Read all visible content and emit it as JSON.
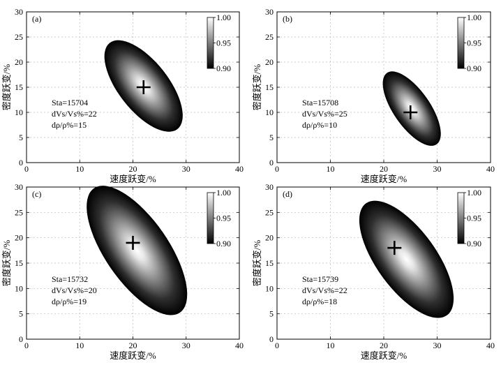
{
  "chart_data": [
    {
      "panel": "(a)",
      "type": "heatmap",
      "xlabel": "速度跃变/%",
      "ylabel": "密度跃变/%",
      "xlim": [
        0,
        40
      ],
      "ylim": [
        0,
        30
      ],
      "xticks": [
        "0",
        "10",
        "20",
        "30",
        "40"
      ],
      "yticks": [
        "0",
        "5",
        "10",
        "15",
        "20",
        "25",
        "30"
      ],
      "grid": true,
      "colorbar": {
        "min": 0.9,
        "max": 1.0,
        "tick_labels": [
          "1.00",
          "0.95",
          "0.90"
        ]
      },
      "best_fit": {
        "x": 22,
        "y": 15
      },
      "region": {
        "center": [
          22,
          15
        ],
        "x_range": [
          15.5,
          28.5
        ],
        "y_range": [
          6.5,
          24
        ]
      },
      "annotation": {
        "sta": "Sta=15704",
        "dv": "dVs/Vs%=22",
        "dp": "dρ/ρ%=15"
      }
    },
    {
      "panel": "(b)",
      "type": "heatmap",
      "xlabel": "速度跃变/%",
      "ylabel": "密度跃变/%",
      "xlim": [
        0,
        40
      ],
      "ylim": [
        0,
        30
      ],
      "xticks": [
        "0",
        "10",
        "20",
        "30",
        "40"
      ],
      "yticks": [
        "0",
        "5",
        "10",
        "15",
        "20",
        "25",
        "30"
      ],
      "grid": true,
      "colorbar": {
        "min": 0.9,
        "max": 1.0,
        "tick_labels": [
          "1.00",
          "0.95",
          "0.90"
        ]
      },
      "best_fit": {
        "x": 25,
        "y": 10
      },
      "region": {
        "center": [
          25,
          10
        ],
        "x_range": [
          20.5,
          30
        ],
        "y_range": [
          3.5,
          18
        ]
      },
      "annotation": {
        "sta": "Sta=15708",
        "dv": "dVs/Vs%=25",
        "dp": "dρ/ρ%=10"
      }
    },
    {
      "panel": "(c)",
      "type": "heatmap",
      "xlabel": "速度跃变/%",
      "ylabel": "密度跃变/%",
      "xlim": [
        0,
        40
      ],
      "ylim": [
        0,
        30
      ],
      "xticks": [
        "0",
        "10",
        "20",
        "30",
        "40"
      ],
      "yticks": [
        "0",
        "5",
        "10",
        "15",
        "20",
        "25",
        "30"
      ],
      "grid": true,
      "colorbar": {
        "min": 0.9,
        "max": 1.0,
        "tick_labels": [
          "1.00",
          "0.95",
          "0.90"
        ]
      },
      "best_fit": {
        "x": 20,
        "y": 19
      },
      "region": {
        "center": [
          20,
          19
        ],
        "x_range": [
          12.5,
          29
        ],
        "y_range": [
          5,
          30
        ]
      },
      "annotation": {
        "sta": "Sta=15732",
        "dv": "dVs/Vs%=20",
        "dp": "dρ/ρ%=19"
      }
    },
    {
      "panel": "(d)",
      "type": "heatmap",
      "xlabel": "速度跃变/%",
      "ylabel": "密度跃变/%",
      "xlim": [
        0,
        40
      ],
      "ylim": [
        0,
        30
      ],
      "xticks": [
        "0",
        "10",
        "20",
        "30",
        "40"
      ],
      "yticks": [
        "0",
        "5",
        "10",
        "15",
        "20",
        "25",
        "30"
      ],
      "grid": true,
      "colorbar": {
        "min": 0.9,
        "max": 1.0,
        "tick_labels": [
          "1.00",
          "0.95",
          "0.90"
        ]
      },
      "best_fit": {
        "x": 22,
        "y": 18
      },
      "region": {
        "center": [
          22,
          18
        ],
        "x_range": [
          16.5,
          32
        ],
        "y_range": [
          4.5,
          27
        ]
      },
      "annotation": {
        "sta": "Sta=15739",
        "dv": "dVs/Vs%=22",
        "dp": "dρ/ρ%=18"
      }
    }
  ]
}
